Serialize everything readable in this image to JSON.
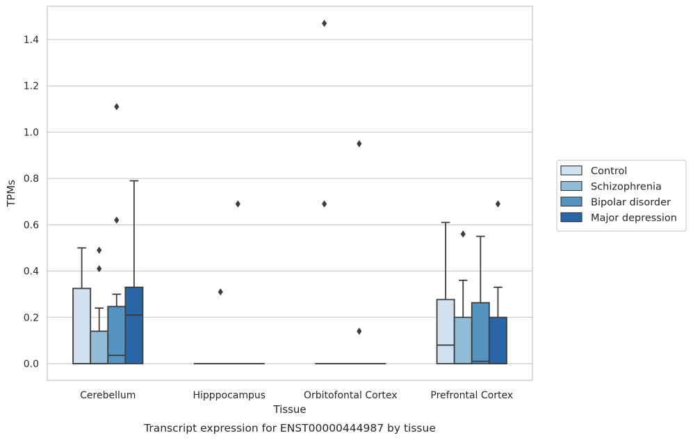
{
  "chart_data": {
    "type": "box",
    "caption": "Transcript expression for ENST00000444987 by tissue",
    "xlabel": "Tissue",
    "ylabel": "TPMs",
    "ylim": [
      -0.07,
      1.545
    ],
    "yticks": [
      "0.0",
      "0.2",
      "0.4",
      "0.6",
      "0.8",
      "1.0",
      "1.2",
      "1.4"
    ],
    "grid": true,
    "legend_position": "right",
    "categories": [
      "Cerebellum",
      "Hipppocampus",
      "Orbitofontal Cortex",
      "Prefrontal Cortex"
    ],
    "series": [
      {
        "name": "Control",
        "color": "#d0e1f0",
        "boxes": [
          {
            "q1": 0.0,
            "median": 0.0,
            "q3": 0.325,
            "whislo": 0.0,
            "whishi": 0.5,
            "fliers": []
          },
          {
            "q1": 0.0,
            "median": 0.0,
            "q3": 0.0,
            "whislo": 0.0,
            "whishi": 0.0,
            "fliers": []
          },
          {
            "q1": 0.0,
            "median": 0.0,
            "q3": 0.0,
            "whislo": 0.0,
            "whishi": 0.0,
            "fliers": [
              0.69,
              1.47
            ]
          },
          {
            "q1": 0.0,
            "median": 0.08,
            "q3": 0.277,
            "whislo": 0.0,
            "whishi": 0.61,
            "fliers": []
          }
        ]
      },
      {
        "name": "Schizophrenia",
        "color": "#92bdd9",
        "boxes": [
          {
            "q1": 0.0,
            "median": 0.0,
            "q3": 0.14,
            "whislo": 0.0,
            "whishi": 0.24,
            "fliers": [
              0.41,
              0.49
            ]
          },
          {
            "q1": 0.0,
            "median": 0.0,
            "q3": 0.0,
            "whislo": 0.0,
            "whishi": 0.0,
            "fliers": [
              0.31
            ]
          },
          {
            "q1": 0.0,
            "median": 0.0,
            "q3": 0.0,
            "whislo": 0.0,
            "whishi": 0.0,
            "fliers": []
          },
          {
            "q1": 0.0,
            "median": 0.0,
            "q3": 0.2,
            "whislo": 0.0,
            "whishi": 0.36,
            "fliers": [
              0.56
            ]
          }
        ]
      },
      {
        "name": "Bipolar disorder",
        "color": "#5593c0",
        "boxes": [
          {
            "q1": 0.0,
            "median": 0.036,
            "q3": 0.247,
            "whislo": 0.0,
            "whishi": 0.3,
            "fliers": [
              0.62,
              1.11
            ]
          },
          {
            "q1": 0.0,
            "median": 0.0,
            "q3": 0.0,
            "whislo": 0.0,
            "whishi": 0.0,
            "fliers": [
              0.69
            ]
          },
          {
            "q1": 0.0,
            "median": 0.0,
            "q3": 0.0,
            "whislo": 0.0,
            "whishi": 0.0,
            "fliers": [
              0.14,
              0.95
            ]
          },
          {
            "q1": 0.0,
            "median": 0.01,
            "q3": 0.263,
            "whislo": 0.0,
            "whishi": 0.55,
            "fliers": []
          }
        ]
      },
      {
        "name": "Major depression",
        "color": "#2866a5",
        "boxes": [
          {
            "q1": 0.0,
            "median": 0.21,
            "q3": 0.33,
            "whislo": 0.0,
            "whishi": 0.79,
            "fliers": []
          },
          {
            "q1": 0.0,
            "median": 0.0,
            "q3": 0.0,
            "whislo": 0.0,
            "whishi": 0.0,
            "fliers": []
          },
          {
            "q1": 0.0,
            "median": 0.0,
            "q3": 0.0,
            "whislo": 0.0,
            "whishi": 0.0,
            "fliers": []
          },
          {
            "q1": 0.0,
            "median": 0.0,
            "q3": 0.2,
            "whislo": 0.0,
            "whishi": 0.33,
            "fliers": [
              0.69
            ]
          }
        ]
      }
    ]
  }
}
